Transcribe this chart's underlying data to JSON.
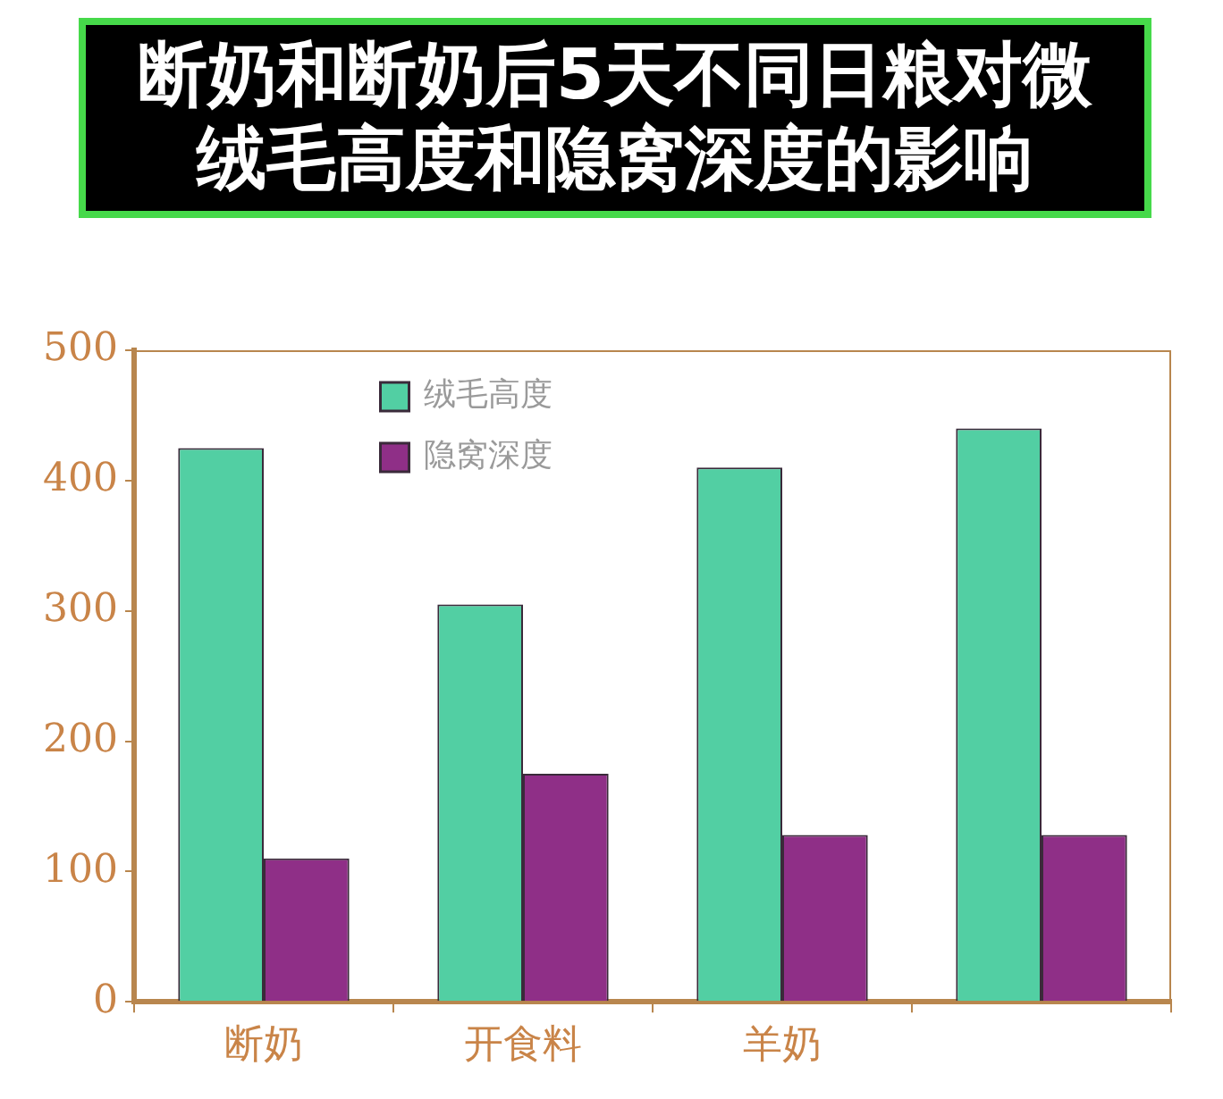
{
  "chart_data": {
    "type": "bar",
    "title": "断奶和断奶后5天不同日粮对微绒毛高度和隐窝深度的影响",
    "categories": [
      "断奶",
      "开食料",
      "羊奶",
      null
    ],
    "series": [
      {
        "name": "绒毛高度",
        "color": "#52cfa3",
        "values": [
          425,
          305,
          410,
          440
        ]
      },
      {
        "name": "隐窝深度",
        "color": "#8f2f87",
        "values": [
          110,
          175,
          128,
          128
        ]
      }
    ],
    "ylim": [
      0,
      500
    ],
    "yticks": [
      0,
      100,
      200,
      300,
      400,
      500
    ],
    "grid": false,
    "legend": "top left"
  }
}
